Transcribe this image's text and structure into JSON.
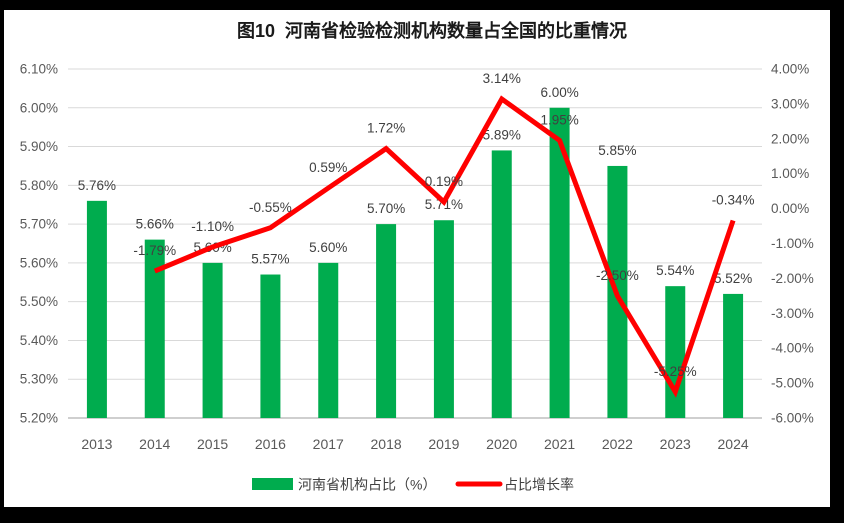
{
  "title": "图10  河南省检验检测机构数量占全国的比重情况",
  "colors": {
    "bar": "#00AC4E",
    "line": "#FF0000",
    "gridline": "#D9D9D9",
    "axis_line": "#BFBFBF",
    "axis_text": "#595959",
    "label_text": "#404040",
    "background": "#FFFFFF",
    "frame": "#000000"
  },
  "chart_data": {
    "type": "combo-bar-line",
    "title": "图10  河南省检验检测机构数量占全国的比重情况",
    "categories": [
      "2013",
      "2014",
      "2015",
      "2016",
      "2017",
      "2018",
      "2019",
      "2020",
      "2021",
      "2022",
      "2023",
      "2024"
    ],
    "series": [
      {
        "name": "河南省机构占比（%）",
        "type": "bar",
        "axis": "left",
        "values": [
          5.76,
          5.66,
          5.6,
          5.57,
          5.6,
          5.7,
          5.71,
          5.89,
          6.0,
          5.85,
          5.54,
          5.52
        ],
        "labels": [
          "5.76%",
          "5.66%",
          "5.60%",
          "5.57%",
          "5.60%",
          "5.70%",
          "5.71%",
          "5.89%",
          "6.00%",
          "5.85%",
          "5.54%",
          "5.52%"
        ]
      },
      {
        "name": "占比增长率",
        "type": "line",
        "axis": "right",
        "values": [
          null,
          -1.79,
          -1.1,
          -0.55,
          0.59,
          1.72,
          0.19,
          3.14,
          1.95,
          -2.5,
          -5.25,
          -0.34
        ],
        "labels": [
          null,
          "-1.79%",
          "-1.10%",
          "-0.55%",
          "0.59%",
          "1.72%",
          "0.19%",
          "3.14%",
          "1.95%",
          "-2.50%",
          "-5.25%",
          "-0.34%"
        ]
      }
    ],
    "left_axis": {
      "min": 5.2,
      "max": 6.1,
      "step": 0.1,
      "ticks": [
        "6.10%",
        "6.00%",
        "5.90%",
        "5.80%",
        "5.70%",
        "5.60%",
        "5.50%",
        "5.40%",
        "5.30%",
        "5.20%"
      ]
    },
    "right_axis": {
      "min": -6.0,
      "max": 4.0,
      "step": 1.0,
      "ticks": [
        "4.00%",
        "3.00%",
        "2.00%",
        "1.00%",
        "0.00%",
        "-1.00%",
        "-2.00%",
        "-3.00%",
        "-4.00%",
        "-5.00%",
        "-6.00%"
      ]
    },
    "grid": true,
    "legend_position": "bottom"
  }
}
